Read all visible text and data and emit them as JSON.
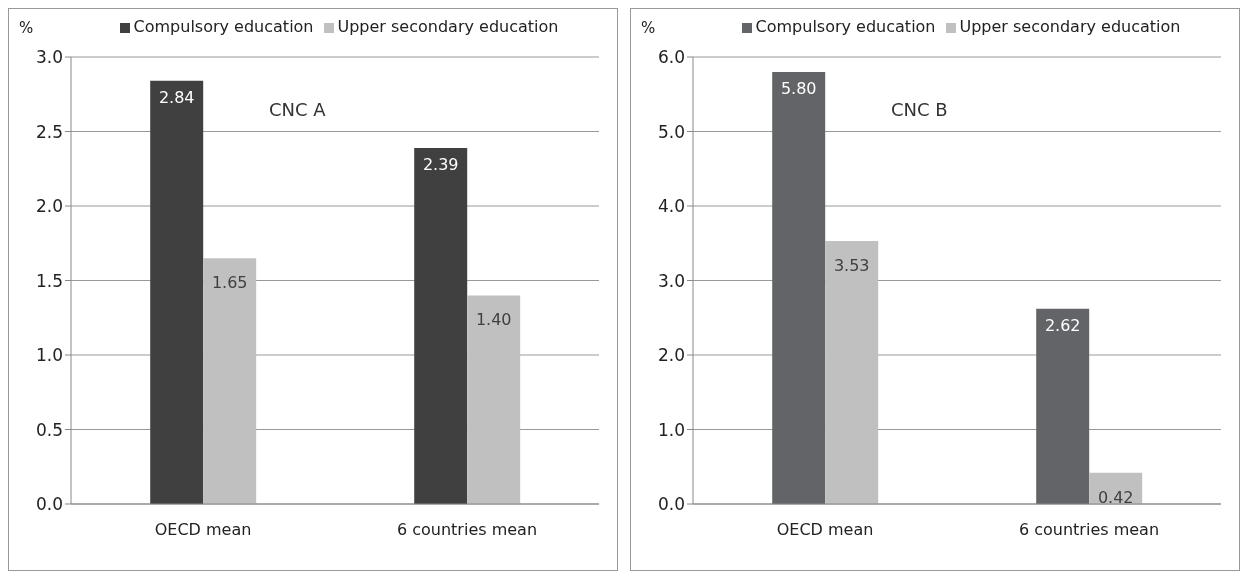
{
  "chart_data": [
    {
      "type": "bar",
      "ylabel": "%",
      "annotations": [
        "CNC A"
      ],
      "categories": [
        "OECD mean",
        "6 countries mean"
      ],
      "series": [
        {
          "name": "Compulsory education",
          "color": "#404040",
          "values": [
            2.84,
            2.39
          ],
          "value_labels": [
            "2.84",
            "2.39"
          ]
        },
        {
          "name": "Upper secondary education",
          "color": "#c0c0c0",
          "values": [
            1.65,
            1.4
          ],
          "value_labels": [
            "1.65",
            "1.40"
          ]
        }
      ],
      "ylim": [
        0,
        3
      ],
      "yticks": [
        {
          "value": 0,
          "label": "0.0"
        },
        {
          "value": 0.5,
          "label": "0.5"
        },
        {
          "value": 1,
          "label": "1.0"
        },
        {
          "value": 1.5,
          "label": "1.5"
        },
        {
          "value": 2,
          "label": "2.0"
        },
        {
          "value": 2.5,
          "label": "2.5"
        },
        {
          "value": 3,
          "label": "3.0"
        }
      ],
      "grid": "y",
      "legend": "top"
    },
    {
      "type": "bar",
      "ylabel": "%",
      "annotations": [
        "CNC B"
      ],
      "categories": [
        "OECD mean",
        "6 countries mean"
      ],
      "series": [
        {
          "name": "Compulsory education",
          "color": "#636467",
          "values": [
            5.8,
            2.62
          ],
          "value_labels": [
            "5.80",
            "2.62"
          ]
        },
        {
          "name": "Upper secondary education",
          "color": "#c0c0c0",
          "values": [
            3.53,
            0.42
          ],
          "value_labels": [
            "3.53",
            "0.42"
          ]
        }
      ],
      "ylim": [
        0,
        6
      ],
      "yticks": [
        {
          "value": 0,
          "label": "0.0"
        },
        {
          "value": 1,
          "label": "1.0"
        },
        {
          "value": 2,
          "label": "2.0"
        },
        {
          "value": 3,
          "label": "3.0"
        },
        {
          "value": 4,
          "label": "4.0"
        },
        {
          "value": 5,
          "label": "5.0"
        },
        {
          "value": 6,
          "label": "6.0"
        }
      ],
      "grid": "y",
      "legend": "top"
    }
  ]
}
